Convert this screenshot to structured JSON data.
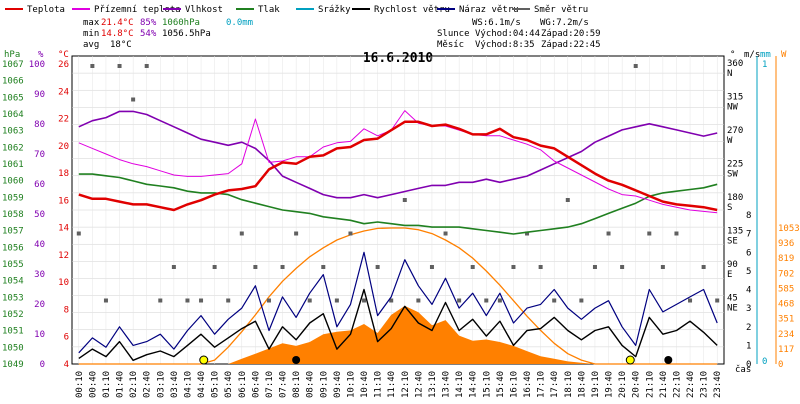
{
  "legend": [
    {
      "label": "Teplota",
      "color": "#e00000"
    },
    {
      "label": "Přízemní teplota",
      "color": "#e000e0"
    },
    {
      "label": "Vlhkost",
      "color": "#8000b0"
    },
    {
      "label": "Tlak",
      "color": "#208020"
    },
    {
      "label": "Srážky",
      "color": "#00a0c0"
    },
    {
      "label": "Rychlost větru",
      "color": "#000000"
    },
    {
      "label": "Náraz větru",
      "color": "#000080"
    },
    {
      "label": "Směr větru",
      "color": "#606060"
    }
  ],
  "stats": {
    "max_label": "max",
    "max_temp": "21.4°C",
    "max_hum": "85%",
    "max_press": "1060hPa",
    "max_rain": "0.0mm",
    "min_label": "min",
    "min_temp": "14.8°C",
    "min_hum": "54%",
    "min_press": "1056.5hPa",
    "avg_label": "avg",
    "avg_temp": "18°C"
  },
  "astro": {
    "ws": "WS:6.1m/s",
    "wg": "WG:7.2m/s",
    "sun_label": "Slunce",
    "sunrise": "Východ:04:44",
    "sunset": "Západ:20:59",
    "moon_label": "Měsíc",
    "moonrise": "Východ:8:35",
    "moonset": "Západ:22:45"
  },
  "colors": {
    "temp": "#e00000",
    "ground": "#e000e0",
    "hum": "#8000b0",
    "press": "#208020",
    "rain": "#00a0c0",
    "wind": "#000000",
    "gust": "#000080",
    "dir": "#606060",
    "solar": "#ff8000",
    "solar_fill": "#ff8000"
  },
  "chart_data": {
    "type": "line",
    "title": "16.6.2010",
    "x_unit_label": "čas",
    "x_ticks": [
      "00:10",
      "00:40",
      "01:10",
      "01:40",
      "02:10",
      "02:40",
      "03:10",
      "03:40",
      "04:10",
      "04:40",
      "05:10",
      "05:40",
      "06:10",
      "06:40",
      "07:10",
      "07:40",
      "08:10",
      "08:40",
      "09:10",
      "09:40",
      "10:10",
      "10:40",
      "11:10",
      "11:40",
      "12:10",
      "12:40",
      "13:10",
      "13:40",
      "14:10",
      "14:40",
      "15:10",
      "15:40",
      "16:10",
      "16:40",
      "17:10",
      "17:40",
      "18:10",
      "18:40",
      "19:10",
      "19:40",
      "20:10",
      "20:40",
      "21:10",
      "21:40",
      "22:10",
      "22:40",
      "23:10",
      "23:40"
    ],
    "axes": {
      "pressure": {
        "unit": "hPa",
        "range": [
          1049,
          1067
        ],
        "ticks": [
          "1067",
          "1066",
          "1065",
          "1064",
          "1063",
          "1062",
          "1061",
          "1060",
          "1059",
          "1058",
          "1057",
          "1056",
          "1055",
          "1054",
          "1053",
          "1052",
          "1051",
          "1050",
          "1049"
        ]
      },
      "humidity": {
        "unit": "%",
        "range": [
          0,
          100
        ],
        "ticks": [
          "100",
          "90",
          "80",
          "70",
          "60",
          "50",
          "40",
          "30",
          "20",
          "10",
          "0"
        ]
      },
      "temperature": {
        "unit": "°C",
        "range": [
          4,
          26
        ],
        "ticks": [
          "26",
          "24",
          "22",
          "20",
          "18",
          "16",
          "14",
          "12",
          "10",
          "8",
          "6",
          "4"
        ]
      },
      "wind_dir": {
        "unit": "°",
        "range": [
          0,
          360
        ],
        "ticks": [
          {
            "deg": "360",
            "dir": "N"
          },
          {
            "deg": "315",
            "dir": "NW"
          },
          {
            "deg": "270",
            "dir": "W"
          },
          {
            "deg": "225",
            "dir": "SW"
          },
          {
            "deg": "180",
            "dir": "S"
          },
          {
            "deg": "135",
            "dir": "SE"
          },
          {
            "deg": "90",
            "dir": "E"
          },
          {
            "deg": "45",
            "dir": "NE"
          },
          {
            "deg": "",
            "dir": ""
          }
        ]
      },
      "wind_speed": {
        "unit": "m/s",
        "range": [
          0,
          8
        ],
        "ticks": [
          "8",
          "7",
          "6",
          "5",
          "4",
          "3",
          "2",
          "1",
          "0"
        ]
      },
      "rain": {
        "unit": "mm",
        "ticks": [
          "1",
          "0"
        ]
      },
      "solar": {
        "unit": "W",
        "range": [
          0,
          1053
        ],
        "ticks": [
          "1053",
          "936",
          "819",
          "702",
          "585",
          "468",
          "351",
          "234",
          "117",
          "0"
        ]
      }
    },
    "series": [
      {
        "name": "Teplota",
        "axis": "temperature",
        "color": "#e00000",
        "values": [
          16.1,
          15.8,
          15.8,
          15.6,
          15.4,
          15.4,
          15.2,
          15.0,
          15.4,
          15.7,
          16.1,
          16.4,
          16.5,
          16.7,
          17.9,
          18.4,
          18.3,
          18.8,
          18.9,
          19.4,
          19.5,
          20.0,
          20.1,
          20.7,
          21.3,
          21.3,
          21.0,
          21.1,
          20.8,
          20.4,
          20.4,
          20.8,
          20.2,
          20.0,
          19.6,
          19.4,
          18.8,
          18.2,
          17.6,
          17.1,
          16.8,
          16.4,
          16.0,
          15.6,
          15.4,
          15.3,
          15.2,
          15.0
        ]
      },
      {
        "name": "Přízemní teplota",
        "axis": "temperature",
        "color": "#e000e0",
        "values": [
          19.8,
          19.4,
          19.0,
          18.6,
          18.3,
          18.1,
          17.8,
          17.5,
          17.4,
          17.4,
          17.5,
          17.6,
          18.3,
          21.5,
          18.4,
          18.5,
          18.8,
          18.8,
          19.5,
          19.8,
          19.9,
          20.8,
          20.3,
          20.7,
          22.1,
          21.2,
          21.0,
          21.0,
          20.7,
          20.4,
          20.3,
          20.3,
          20.0,
          19.7,
          19.3,
          18.5,
          18.0,
          17.5,
          17.0,
          16.5,
          16.1,
          16.0,
          15.7,
          15.4,
          15.2,
          15.0,
          14.9,
          14.8
        ]
      },
      {
        "name": "Vlhkost",
        "axis": "humidity",
        "color": "#8000b0",
        "values": [
          77,
          79,
          80,
          82,
          82,
          81,
          79,
          77,
          75,
          73,
          72,
          71,
          72,
          70,
          66,
          61,
          59,
          57,
          55,
          54,
          54,
          55,
          54,
          55,
          56,
          57,
          58,
          58,
          59,
          59,
          60,
          59,
          60,
          61,
          63,
          65,
          67,
          69,
          72,
          74,
          76,
          77,
          78,
          77,
          76,
          75,
          74,
          75
        ]
      },
      {
        "name": "Tlak",
        "axis": "pressure",
        "color": "#208020",
        "values": [
          1060.1,
          1060.1,
          1060.0,
          1059.9,
          1059.7,
          1059.5,
          1059.4,
          1059.3,
          1059.1,
          1059.0,
          1059.0,
          1058.9,
          1058.6,
          1058.4,
          1058.2,
          1058.0,
          1057.9,
          1057.8,
          1057.6,
          1057.5,
          1057.4,
          1057.2,
          1057.3,
          1057.2,
          1057.1,
          1057.1,
          1057.0,
          1057.0,
          1057.0,
          1056.9,
          1056.8,
          1056.7,
          1056.6,
          1056.7,
          1056.8,
          1056.9,
          1057.0,
          1057.2,
          1057.5,
          1057.8,
          1058.1,
          1058.4,
          1058.8,
          1059.0,
          1059.1,
          1059.2,
          1059.3,
          1059.5
        ]
      },
      {
        "name": "Rychlost větru",
        "axis": "wind_speed",
        "color": "#000000",
        "values": [
          0.3,
          0.8,
          0.4,
          1.2,
          0.2,
          0.5,
          0.7,
          0.4,
          1.0,
          1.6,
          0.9,
          1.4,
          1.9,
          2.3,
          0.8,
          2.0,
          1.3,
          2.2,
          2.7,
          0.8,
          1.6,
          4.0,
          1.2,
          1.9,
          3.1,
          2.2,
          1.8,
          3.3,
          1.8,
          2.4,
          1.5,
          2.3,
          1.0,
          1.8,
          1.9,
          2.5,
          1.8,
          1.3,
          1.8,
          2.0,
          1.0,
          0.4,
          2.5,
          1.6,
          1.8,
          2.3,
          1.7,
          1.0
        ]
      },
      {
        "name": "Náraz větru",
        "axis": "wind_speed",
        "color": "#000080",
        "values": [
          0.6,
          1.4,
          0.9,
          2.0,
          1.0,
          1.2,
          1.6,
          0.8,
          1.8,
          2.6,
          1.6,
          2.4,
          3.0,
          4.2,
          1.8,
          3.6,
          2.5,
          3.8,
          4.8,
          2.0,
          3.2,
          6.0,
          2.6,
          3.6,
          5.6,
          4.2,
          3.2,
          4.6,
          3.0,
          3.8,
          2.6,
          3.8,
          2.2,
          3.0,
          3.2,
          4.0,
          3.0,
          2.4,
          3.0,
          3.4,
          2.0,
          1.0,
          4.0,
          2.8,
          3.2,
          3.6,
          4.0,
          2.2
        ]
      },
      {
        "name": "Solar",
        "axis": "solar",
        "color": "#ff8000",
        "values": [
          0,
          0,
          0,
          0,
          0,
          0,
          0,
          0,
          0,
          0,
          0,
          0,
          40,
          80,
          120,
          160,
          140,
          170,
          230,
          250,
          260,
          310,
          240,
          380,
          450,
          400,
          300,
          340,
          220,
          180,
          190,
          170,
          140,
          100,
          60,
          40,
          20,
          10,
          0,
          0,
          0,
          0,
          0,
          0,
          0,
          0,
          0,
          0
        ]
      },
      {
        "name": "Solar max",
        "axis": "solar",
        "color": "#ff8000",
        "values": [
          0,
          0,
          0,
          0,
          0,
          0,
          0,
          0,
          0,
          0,
          30,
          130,
          250,
          380,
          520,
          640,
          740,
          830,
          900,
          960,
          1000,
          1030,
          1050,
          1053,
          1053,
          1040,
          1010,
          960,
          900,
          820,
          720,
          610,
          490,
          370,
          260,
          160,
          80,
          30,
          0,
          0,
          0,
          0,
          0,
          0,
          0,
          0,
          0,
          0
        ]
      }
    ],
    "wind_direction_deg": [
      135,
      360,
      45,
      360,
      315,
      360,
      45,
      90,
      45,
      45,
      90,
      45,
      135,
      90,
      45,
      90,
      135,
      45,
      90,
      45,
      135,
      45,
      90,
      45,
      180,
      45,
      90,
      135,
      45,
      90,
      45,
      45,
      90,
      135,
      90,
      45,
      180,
      45,
      90,
      135,
      90,
      360,
      135,
      90,
      135,
      45,
      90,
      45
    ],
    "markers": [
      {
        "type": "sun",
        "label": "Slunce"
      },
      {
        "type": "sun",
        "label": "Slunce"
      },
      {
        "type": "moon",
        "label": "Měsíc"
      },
      {
        "type": "moon",
        "label": "Měsíc"
      }
    ]
  }
}
